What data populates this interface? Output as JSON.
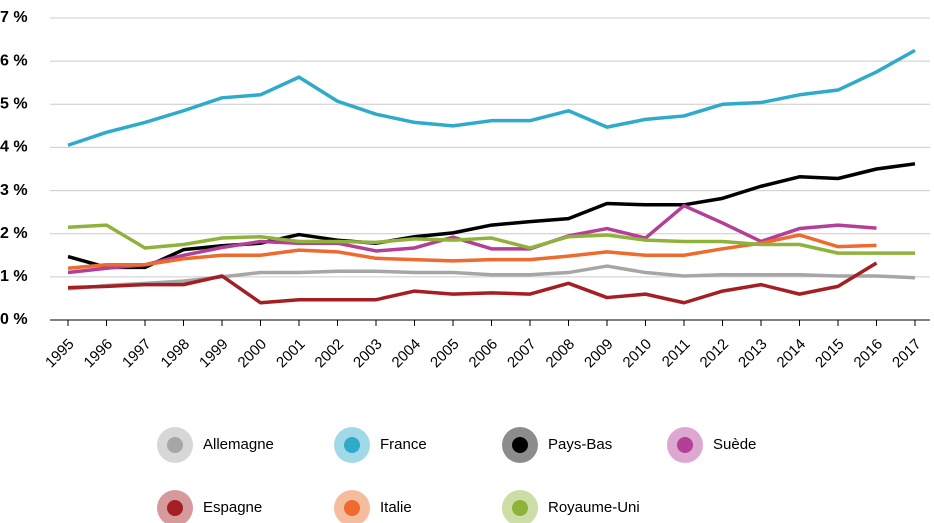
{
  "chart_data": {
    "type": "line",
    "categories": [
      "1995",
      "1996",
      "1997",
      "1998",
      "1999",
      "2000",
      "2001",
      "2002",
      "2003",
      "2004",
      "2005",
      "2006",
      "2007",
      "2008",
      "2009",
      "2010",
      "2011",
      "2012",
      "2013",
      "2014",
      "2015",
      "2016",
      "2017"
    ],
    "ylim": [
      0,
      7
    ],
    "yticks": [
      {
        "value": 0,
        "label": "0 %"
      },
      {
        "value": 1,
        "label": "1 %"
      },
      {
        "value": 2,
        "label": "2 %"
      },
      {
        "value": 3,
        "label": "3 %"
      },
      {
        "value": 4,
        "label": "4 %"
      },
      {
        "value": 5,
        "label": "5 %"
      },
      {
        "value": 6,
        "label": "6 %"
      },
      {
        "value": 7,
        "label": "7 %"
      }
    ],
    "grid": true,
    "series": [
      {
        "name": "Allemagne",
        "color": "#a6a6a6",
        "values": [
          0.72,
          0.8,
          0.85,
          0.9,
          1.0,
          1.1,
          1.1,
          1.13,
          1.13,
          1.1,
          1.1,
          1.05,
          1.05,
          1.1,
          1.25,
          1.1,
          1.02,
          1.05,
          1.05,
          1.05,
          1.02,
          1.02,
          0.98
        ]
      },
      {
        "name": "France",
        "color": "#2eaacb",
        "values": [
          4.05,
          4.35,
          4.58,
          4.85,
          5.15,
          5.22,
          5.63,
          5.07,
          4.77,
          4.58,
          4.5,
          4.62,
          4.62,
          4.85,
          4.47,
          4.65,
          4.73,
          5.0,
          5.04,
          5.22,
          5.33,
          5.75,
          6.25
        ]
      },
      {
        "name": "Pays-Bas",
        "color": "#000000",
        "values": [
          1.47,
          1.22,
          1.22,
          1.63,
          1.72,
          1.78,
          1.98,
          1.85,
          1.78,
          1.93,
          2.02,
          2.2,
          2.28,
          2.35,
          2.7,
          2.67,
          2.67,
          2.82,
          3.1,
          3.32,
          3.28,
          3.5,
          3.62
        ]
      },
      {
        "name": "Suède",
        "color": "#b43f97",
        "values": [
          1.1,
          1.2,
          1.28,
          1.5,
          1.68,
          1.82,
          1.78,
          1.78,
          1.6,
          1.67,
          1.92,
          1.65,
          1.65,
          1.95,
          2.12,
          1.9,
          2.65,
          2.25,
          1.82,
          2.12,
          2.2,
          2.13,
          null
        ]
      },
      {
        "name": "Espagne",
        "color": "#a31f24",
        "values": [
          0.75,
          0.78,
          0.82,
          0.82,
          1.02,
          0.4,
          0.47,
          0.47,
          0.47,
          0.67,
          0.6,
          0.63,
          0.6,
          0.85,
          0.52,
          0.6,
          0.4,
          0.67,
          0.82,
          0.6,
          0.78,
          1.32,
          null
        ]
      },
      {
        "name": "Italie",
        "color": "#ec6b2d",
        "values": [
          1.2,
          1.28,
          1.28,
          1.42,
          1.5,
          1.5,
          1.62,
          1.58,
          1.43,
          1.4,
          1.37,
          1.4,
          1.4,
          1.48,
          1.58,
          1.5,
          1.5,
          1.65,
          1.78,
          1.97,
          1.7,
          1.73,
          null
        ]
      },
      {
        "name": "Royaume-Uni",
        "color": "#8fb33a",
        "values": [
          2.15,
          2.2,
          1.67,
          1.75,
          1.9,
          1.93,
          1.82,
          1.82,
          1.8,
          1.88,
          1.85,
          1.9,
          1.67,
          1.93,
          1.97,
          1.85,
          1.82,
          1.82,
          1.75,
          1.75,
          1.55,
          1.55,
          1.55
        ]
      }
    ]
  }
}
